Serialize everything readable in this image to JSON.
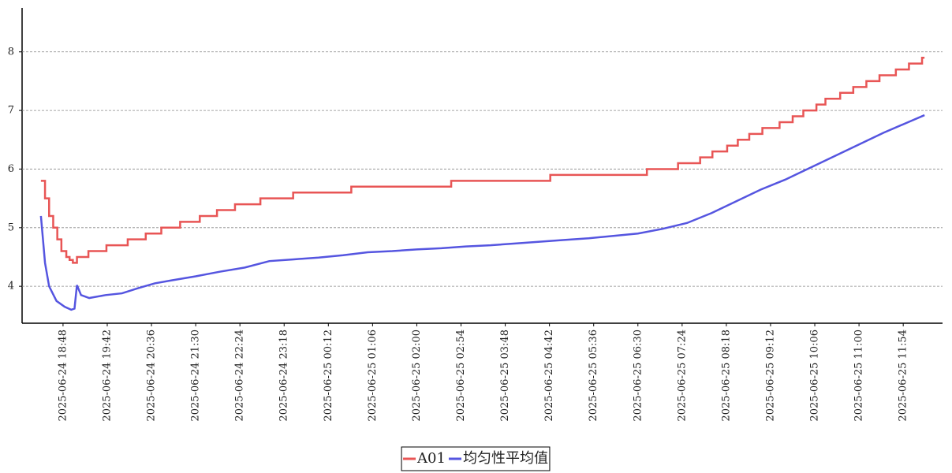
{
  "chart_data": {
    "type": "line",
    "xlim": [
      "2025-06-24 17:58",
      "2025-06-25 12:42"
    ],
    "xticks": [
      "2025-06-24 18:48",
      "2025-06-24 19:42",
      "2025-06-24 20:36",
      "2025-06-24 21:30",
      "2025-06-24 22:24",
      "2025-06-24 23:18",
      "2025-06-25 00:12",
      "2025-06-25 01:06",
      "2025-06-25 02:00",
      "2025-06-25 02:54",
      "2025-06-25 03:48",
      "2025-06-25 04:42",
      "2025-06-25 05:36",
      "2025-06-25 06:30",
      "2025-06-25 07:24",
      "2025-06-25 08:18",
      "2025-06-25 09:12",
      "2025-06-25 10:06",
      "2025-06-25 11:00",
      "2025-06-25 11:54"
    ],
    "ylim": [
      3.37,
      8.75
    ],
    "yticks": [
      4,
      5,
      6,
      7,
      8
    ],
    "grid": true,
    "legend": "bottom",
    "series": [
      {
        "name": "A01",
        "color": "#e85555",
        "step": true,
        "x": [
          "2025-06-24 18:21",
          "2025-06-24 18:26",
          "2025-06-24 18:31",
          "2025-06-24 18:36",
          "2025-06-24 18:41",
          "2025-06-24 18:46",
          "2025-06-24 18:52",
          "2025-06-24 18:56",
          "2025-06-24 19:00",
          "2025-06-24 19:05",
          "2025-06-24 19:19",
          "2025-06-24 19:41",
          "2025-06-24 20:07",
          "2025-06-24 20:29",
          "2025-06-24 20:48",
          "2025-06-24 21:11",
          "2025-06-24 21:35",
          "2025-06-24 21:56",
          "2025-06-24 22:18",
          "2025-06-24 22:49",
          "2025-06-24 23:29",
          "2025-06-25 00:40",
          "2025-06-25 02:42",
          "2025-06-25 04:43",
          "2025-06-25 06:41",
          "2025-06-25 07:19",
          "2025-06-25 07:46",
          "2025-06-25 08:01",
          "2025-06-25 08:19",
          "2025-06-25 08:32",
          "2025-06-25 08:46",
          "2025-06-25 09:02",
          "2025-06-25 09:23",
          "2025-06-25 09:39",
          "2025-06-25 09:52",
          "2025-06-25 10:08",
          "2025-06-25 10:19",
          "2025-06-25 10:37",
          "2025-06-25 10:53",
          "2025-06-25 11:09",
          "2025-06-25 11:25",
          "2025-06-25 11:45",
          "2025-06-25 12:01",
          "2025-06-25 12:17",
          "2025-06-25 12:20"
        ],
        "values": [
          5.8,
          5.5,
          5.2,
          5.0,
          4.8,
          4.6,
          4.5,
          4.45,
          4.4,
          4.5,
          4.6,
          4.7,
          4.8,
          4.9,
          5.0,
          5.1,
          5.2,
          5.3,
          5.4,
          5.5,
          5.6,
          5.7,
          5.8,
          5.9,
          6.0,
          6.1,
          6.2,
          6.3,
          6.4,
          6.5,
          6.6,
          6.7,
          6.8,
          6.9,
          7.0,
          7.1,
          7.2,
          7.3,
          7.4,
          7.5,
          7.6,
          7.7,
          7.8,
          7.9,
          7.9
        ]
      },
      {
        "name": "均匀性平均值",
        "color": "#5555e0",
        "x": [
          "2025-06-24 18:21",
          "2025-06-24 18:26",
          "2025-06-24 18:31",
          "2025-06-24 18:40",
          "2025-06-24 18:50",
          "2025-06-24 18:58",
          "2025-06-24 19:02",
          "2025-06-24 19:05",
          "2025-06-24 19:10",
          "2025-06-24 19:20",
          "2025-06-24 19:40",
          "2025-06-24 20:00",
          "2025-06-24 20:20",
          "2025-06-24 20:40",
          "2025-06-24 21:00",
          "2025-06-24 21:30",
          "2025-06-24 22:00",
          "2025-06-24 22:30",
          "2025-06-24 23:00",
          "2025-06-24 23:30",
          "2025-06-25 00:00",
          "2025-06-25 00:30",
          "2025-06-25 01:00",
          "2025-06-25 01:30",
          "2025-06-25 02:00",
          "2025-06-25 02:30",
          "2025-06-25 03:00",
          "2025-06-25 03:30",
          "2025-06-25 04:00",
          "2025-06-25 04:30",
          "2025-06-25 05:00",
          "2025-06-25 05:30",
          "2025-06-25 06:00",
          "2025-06-25 06:30",
          "2025-06-25 07:00",
          "2025-06-25 07:30",
          "2025-06-25 08:00",
          "2025-06-25 08:30",
          "2025-06-25 09:00",
          "2025-06-25 09:30",
          "2025-06-25 10:00",
          "2025-06-25 10:30",
          "2025-06-25 11:00",
          "2025-06-25 11:30",
          "2025-06-25 12:00",
          "2025-06-25 12:20"
        ],
        "values": [
          5.2,
          4.4,
          4.0,
          3.75,
          3.65,
          3.6,
          3.62,
          4.02,
          3.85,
          3.8,
          3.85,
          3.88,
          3.97,
          4.05,
          4.1,
          4.17,
          4.25,
          4.32,
          4.43,
          4.46,
          4.49,
          4.53,
          4.58,
          4.6,
          4.63,
          4.65,
          4.68,
          4.7,
          4.73,
          4.76,
          4.79,
          4.82,
          4.86,
          4.9,
          4.98,
          5.08,
          5.25,
          5.45,
          5.65,
          5.82,
          6.02,
          6.22,
          6.42,
          6.62,
          6.8,
          6.92
        ]
      }
    ]
  }
}
